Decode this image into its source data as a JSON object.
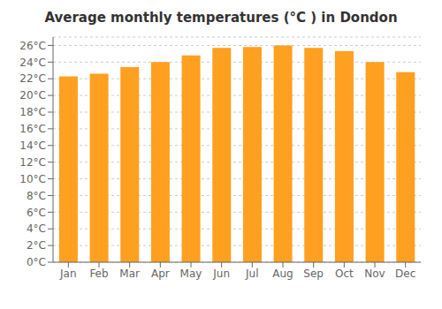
{
  "chart_data": {
    "type": "bar",
    "title": "Average monthly temperatures (°C ) in Dondon",
    "categories": [
      "Jan",
      "Feb",
      "Mar",
      "Apr",
      "May",
      "Jun",
      "Jul",
      "Aug",
      "Sep",
      "Oct",
      "Nov",
      "Dec"
    ],
    "values": [
      22.3,
      22.6,
      23.4,
      24.0,
      24.8,
      25.7,
      25.8,
      26.0,
      25.7,
      25.3,
      24.0,
      22.8
    ],
    "color": "#FFA020",
    "ylim": [
      0,
      27
    ],
    "yticks": [
      {
        "value": 0,
        "label": "0°C"
      },
      {
        "value": 2,
        "label": "2°C"
      },
      {
        "value": 4,
        "label": "4°C"
      },
      {
        "value": 6,
        "label": "6°C"
      },
      {
        "value": 8,
        "label": "8°C"
      },
      {
        "value": 10,
        "label": "10°C"
      },
      {
        "value": 12,
        "label": "12°C"
      },
      {
        "value": 14,
        "label": "14°C"
      },
      {
        "value": 16,
        "label": "16°C"
      },
      {
        "value": 18,
        "label": "18°C"
      },
      {
        "value": 20,
        "label": "20°C"
      },
      {
        "value": 22,
        "label": "22°C"
      },
      {
        "value": 24,
        "label": "24°C"
      },
      {
        "value": 26,
        "label": "26°C"
      }
    ],
    "grid": true
  }
}
